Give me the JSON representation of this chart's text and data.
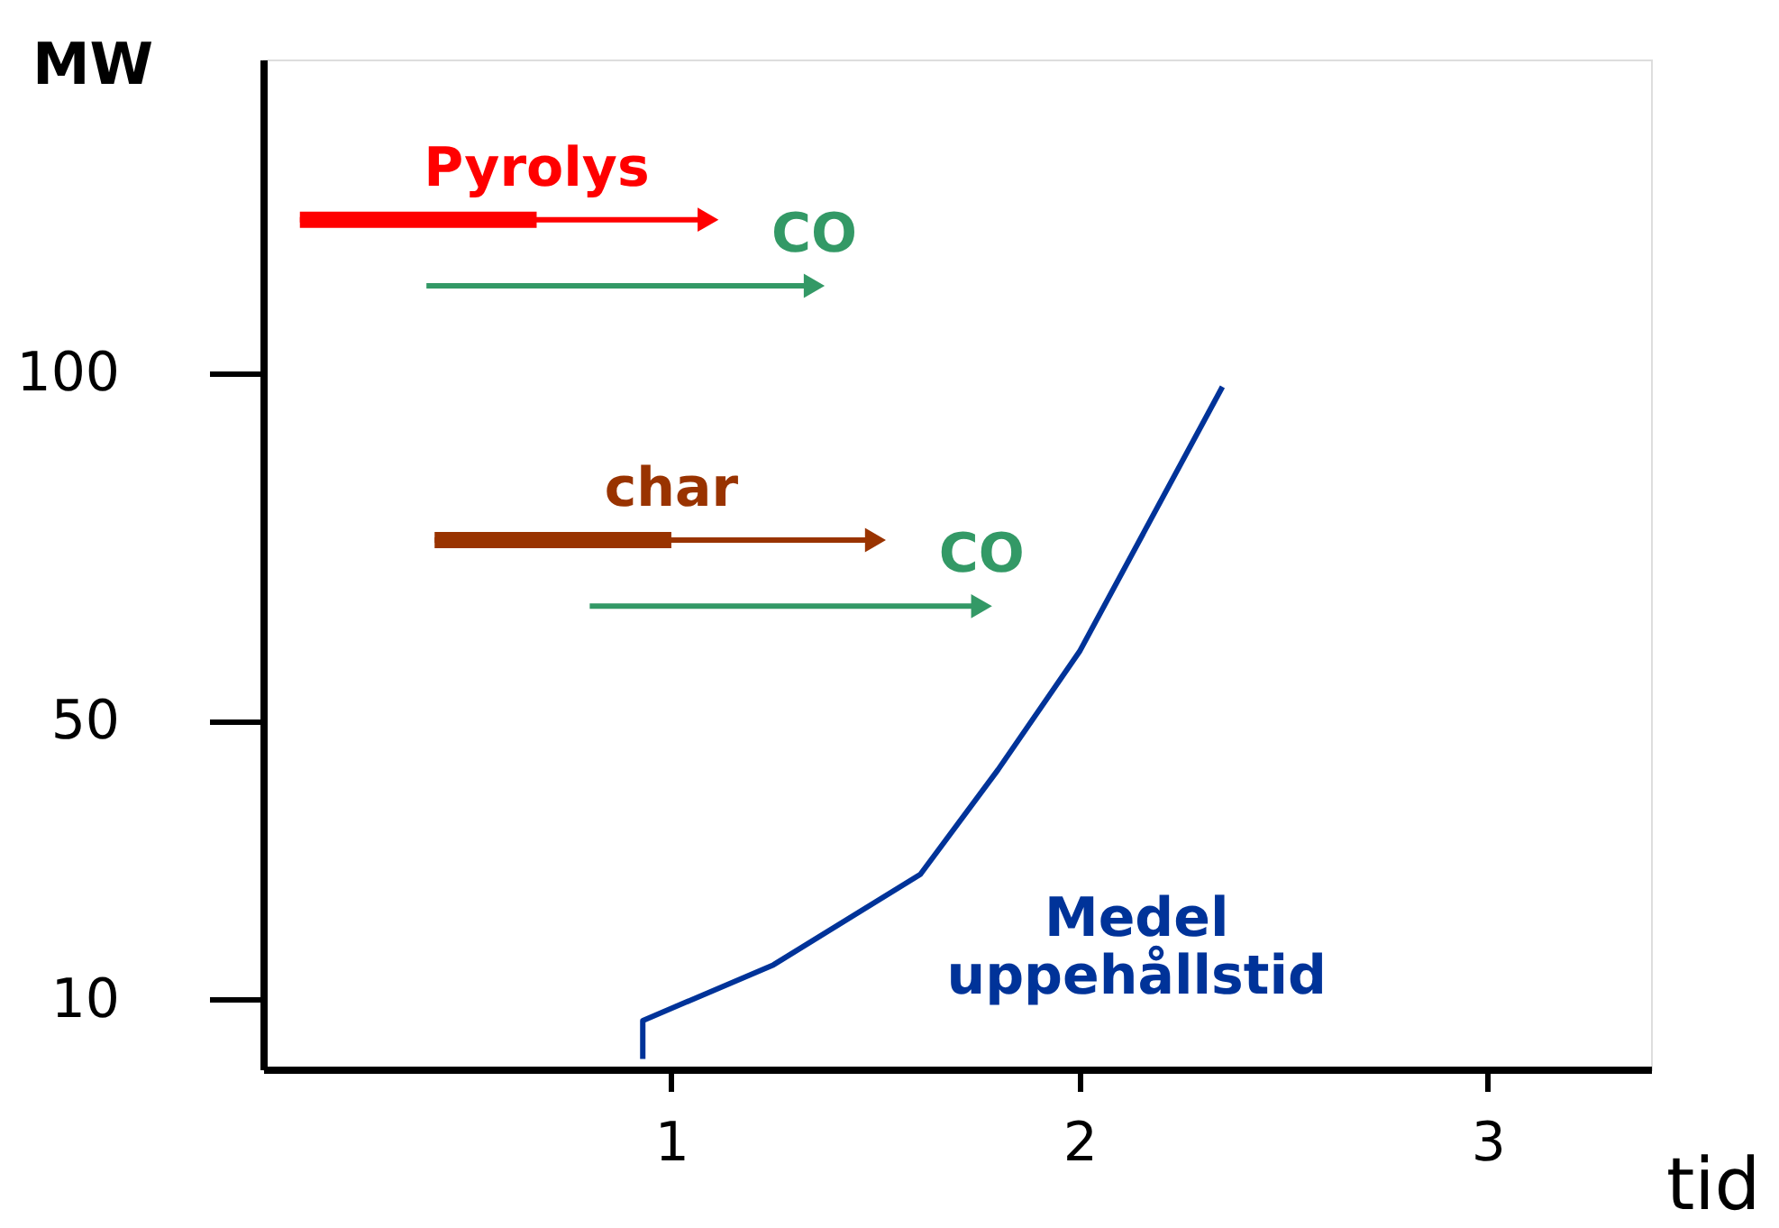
{
  "chart_data": {
    "type": "line",
    "xlabel": "tid",
    "ylabel": "MW",
    "xlim": [
      0,
      3.4
    ],
    "xticks": [
      1,
      2,
      3
    ],
    "ylim": [
      0,
      145
    ],
    "yticks": [
      10,
      50,
      100
    ],
    "grid": false,
    "series": [
      {
        "name": "Medel uppehållstid",
        "color": "#003399",
        "x": [
          0.93,
          0.93,
          1.25,
          1.61,
          1.8,
          2.0,
          2.35
        ],
        "values": [
          1.5,
          7,
          15,
          28,
          43,
          60,
          98
        ]
      },
      {
        "color": "#ff0000",
        "marker": "triangle",
        "x": [
          0.09,
          1.09
        ],
        "values": [
          122,
          122
        ]
      },
      {
        "name": "Pyrolys",
        "color": "#ff0000",
        "marker": "none",
        "x": [
          0.09,
          0.67
        ],
        "values": [
          122,
          122
        ]
      },
      {
        "name": "CO",
        "color": "#339966",
        "marker": "triangle",
        "x": [
          0.4,
          1.35
        ],
        "values": [
          112.5,
          112.5
        ]
      },
      {
        "color": "#993300",
        "marker": "triangle",
        "x": [
          0.42,
          1.5
        ],
        "values": [
          76,
          76
        ]
      },
      {
        "name": "char",
        "color": "#993300",
        "marker": "none",
        "x": [
          0.42,
          1.0
        ],
        "values": [
          76,
          76
        ]
      },
      {
        "name": "CO",
        "color": "#339966",
        "marker": "triangle",
        "x": [
          0.8,
          1.76
        ],
        "values": [
          66.5,
          66.5
        ]
      }
    ]
  }
}
